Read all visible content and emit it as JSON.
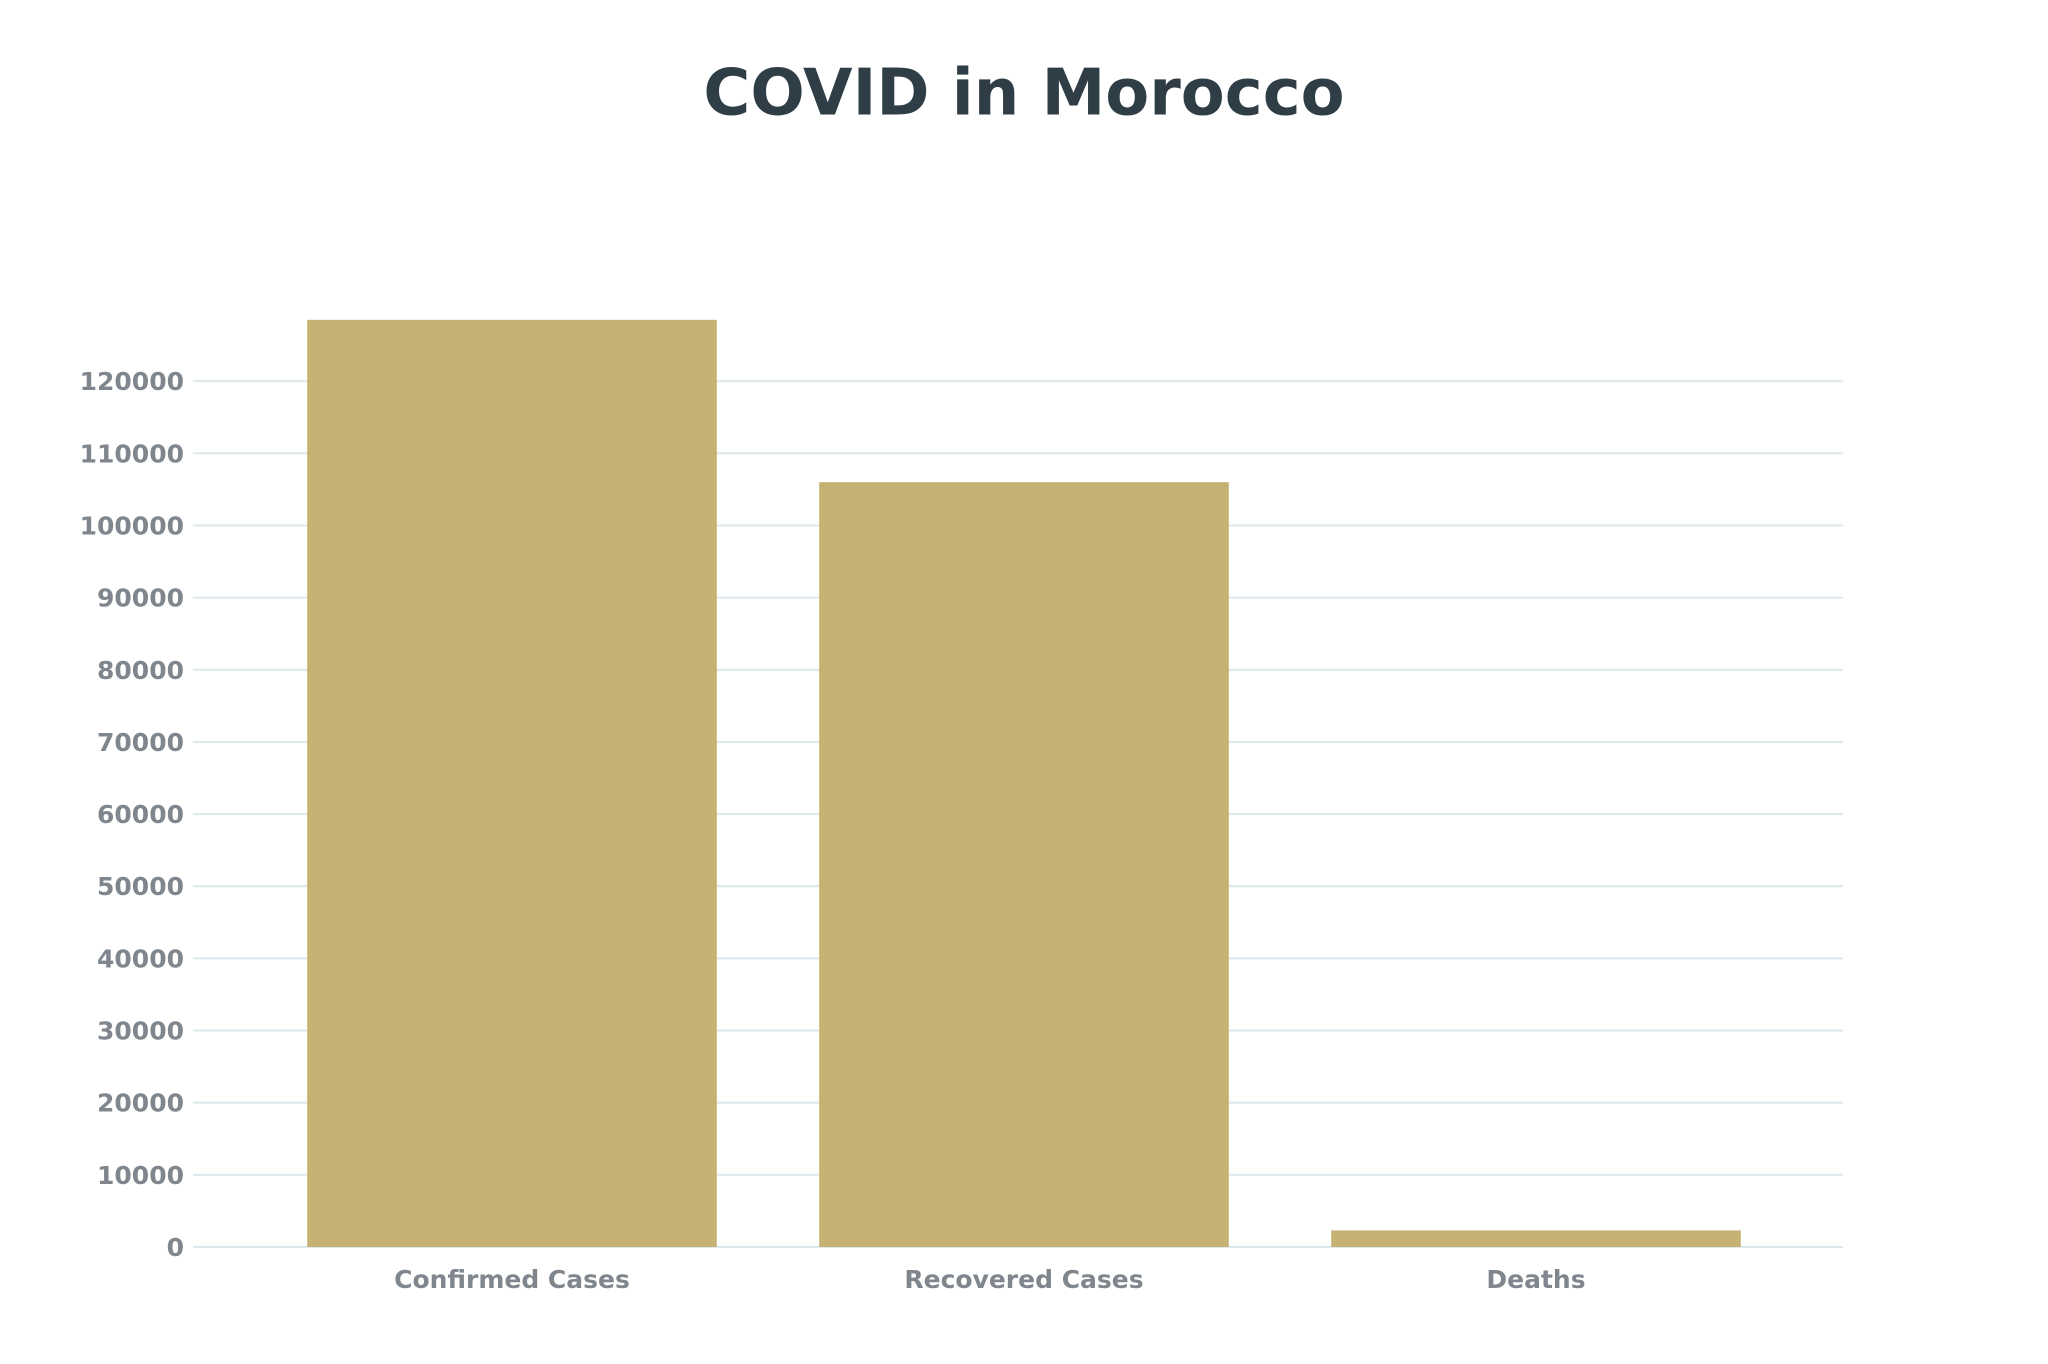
{
  "chart_data": {
    "type": "bar",
    "title": "COVID in Morocco",
    "categories": [
      "Confirmed Cases",
      "Recovered Cases",
      "Deaths"
    ],
    "values": [
      128500,
      106000,
      2300
    ],
    "color": "#c5b273",
    "ylim": [
      0,
      130000
    ],
    "yticks": [
      0,
      10000,
      20000,
      30000,
      40000,
      50000,
      60000,
      70000,
      80000,
      90000,
      100000,
      110000,
      120000
    ],
    "grid": true
  }
}
